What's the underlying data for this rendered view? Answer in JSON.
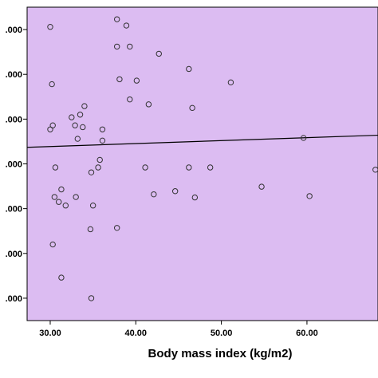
{
  "chart_data": {
    "type": "scatter",
    "title": "",
    "xlabel": "Body mass index (kg/m2)",
    "ylabel": "",
    "x_ticks": [
      "30.00",
      "40.00",
      "50.00",
      "60.00"
    ],
    "x_tick_values": [
      30,
      40,
      50,
      60
    ],
    "y_ticks": [
      ".000",
      ".000",
      ".000",
      ".000",
      ".000",
      ".000",
      ".000"
    ],
    "xlim": [
      27.3,
      68.3
    ],
    "ylim": [
      -0.5,
      6.5
    ],
    "grid": false,
    "plot_background": "#dcbcf2",
    "point_color": "#333333",
    "fit_line_color": "#000000",
    "points": [
      {
        "x": 30.0,
        "y": 6.06
      },
      {
        "x": 37.8,
        "y": 6.23
      },
      {
        "x": 38.9,
        "y": 6.09
      },
      {
        "x": 37.8,
        "y": 5.62
      },
      {
        "x": 39.3,
        "y": 5.62
      },
      {
        "x": 42.7,
        "y": 5.46
      },
      {
        "x": 46.2,
        "y": 5.12
      },
      {
        "x": 30.2,
        "y": 4.78
      },
      {
        "x": 38.1,
        "y": 4.89
      },
      {
        "x": 40.1,
        "y": 4.86
      },
      {
        "x": 51.1,
        "y": 4.82
      },
      {
        "x": 39.3,
        "y": 4.44
      },
      {
        "x": 41.5,
        "y": 4.33
      },
      {
        "x": 46.6,
        "y": 4.25
      },
      {
        "x": 34.0,
        "y": 4.29
      },
      {
        "x": 32.5,
        "y": 4.04
      },
      {
        "x": 33.5,
        "y": 4.1
      },
      {
        "x": 30.0,
        "y": 3.77
      },
      {
        "x": 30.3,
        "y": 3.86
      },
      {
        "x": 32.9,
        "y": 3.86
      },
      {
        "x": 33.8,
        "y": 3.82
      },
      {
        "x": 36.1,
        "y": 3.77
      },
      {
        "x": 33.2,
        "y": 3.56
      },
      {
        "x": 36.1,
        "y": 3.52
      },
      {
        "x": 59.6,
        "y": 3.58
      },
      {
        "x": 35.8,
        "y": 3.09
      },
      {
        "x": 30.6,
        "y": 2.92
      },
      {
        "x": 35.6,
        "y": 2.92
      },
      {
        "x": 34.8,
        "y": 2.81
      },
      {
        "x": 41.1,
        "y": 2.92
      },
      {
        "x": 46.2,
        "y": 2.92
      },
      {
        "x": 48.7,
        "y": 2.92
      },
      {
        "x": 68.0,
        "y": 2.87
      },
      {
        "x": 31.3,
        "y": 2.43
      },
      {
        "x": 30.5,
        "y": 2.26
      },
      {
        "x": 31.0,
        "y": 2.15
      },
      {
        "x": 31.8,
        "y": 2.07
      },
      {
        "x": 33.0,
        "y": 2.26
      },
      {
        "x": 35.0,
        "y": 2.07
      },
      {
        "x": 42.1,
        "y": 2.32
      },
      {
        "x": 44.6,
        "y": 2.39
      },
      {
        "x": 46.9,
        "y": 2.25
      },
      {
        "x": 54.7,
        "y": 2.49
      },
      {
        "x": 60.3,
        "y": 2.28
      },
      {
        "x": 34.7,
        "y": 1.54
      },
      {
        "x": 37.8,
        "y": 1.57
      },
      {
        "x": 30.3,
        "y": 1.2
      },
      {
        "x": 31.3,
        "y": 0.46
      },
      {
        "x": 34.8,
        "y": 0.0
      }
    ],
    "fit_line": {
      "x": [
        27.3,
        68.3
      ],
      "y": [
        3.37,
        3.64
      ]
    }
  }
}
